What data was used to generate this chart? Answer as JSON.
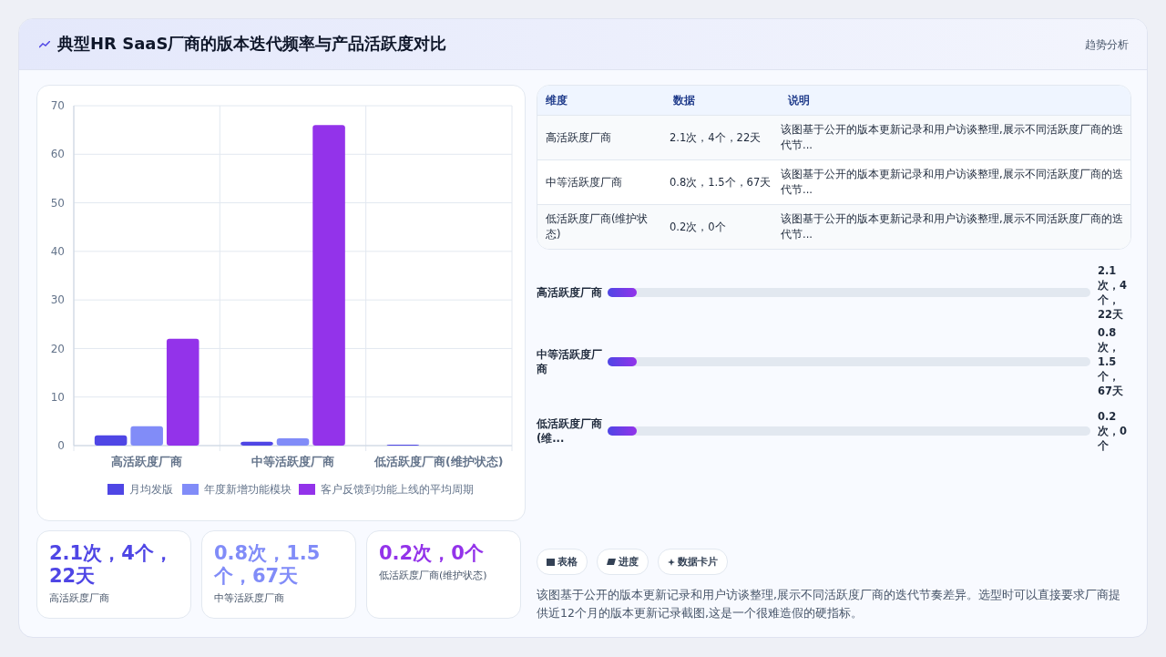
{
  "chart_data": [
    {
      "type": "bar",
      "title": "典型HR SaaS厂商的版本迭代频率与产品活跃度对比",
      "annotations": [
        "趋势分析"
      ],
      "categories": [
        "高活跃度厂商",
        "中等活跃度厂商",
        "低活跃度厂商(维护状态)"
      ],
      "series": [
        {
          "name": "月均发版",
          "color": "#4f46e5",
          "values": [
            2.1,
            0.8,
            0.2
          ]
        },
        {
          "name": "年度新增功能模块",
          "color": "#818cf8",
          "values": [
            4,
            1.5,
            0
          ]
        },
        {
          "name": "客户反馈到功能上线的平均周期",
          "color": "#9333ea",
          "values": [
            22,
            66,
            null
          ]
        }
      ],
      "ylim": [
        0,
        70
      ],
      "yticks": [
        0,
        10,
        20,
        30,
        40,
        50,
        60,
        70
      ],
      "grid": true,
      "legend": "bottom"
    },
    {
      "type": "other",
      "annotations": [
        "维度",
        "数据",
        "说明",
        "高活跃度厂商",
        "2.1次，4个，22天",
        "该图基于公开的版本更新记录和用户访谈整理,展示不同活跃度厂商的迭代节...",
        "中等活跃度厂商",
        "0.8次，1.5个，67天",
        "该图基于公开的版本更新记录和用户访谈整理,展示不同活跃度厂商的迭代节...",
        "低活跃度厂商(维护状态)",
        "0.2次，0个",
        "该图基于公开的版本更新记录和用户访谈整理,展示不同活跃度厂商的迭代节..."
      ]
    },
    {
      "type": "other",
      "annotations": [
        "高活跃度厂商",
        "2.1次，4个，22天",
        "中等活跃度厂商",
        "0.8次，1.5个，67天",
        "低活跃度厂商(维...",
        "0.2次，0个"
      ]
    },
    {
      "type": "other",
      "annotations": [
        "2.1次，4个，22天",
        "高活跃度厂商",
        "0.8次，1.5个，67天",
        "中等活跃度厂商",
        "0.2次，0个",
        "低活跃度厂商(维护状态)"
      ]
    },
    {
      "type": "other",
      "annotations": [
        "表格",
        "进度",
        "数据卡片",
        "该图基于公开的版本更新记录和用户访谈整理,展示不同活跃度厂商的迭代节奏差异。选型时可以直接要求厂商提供近12个月的版本更新记录截图,这是一个很难造假的硬指标。"
      ]
    }
  ]
}
